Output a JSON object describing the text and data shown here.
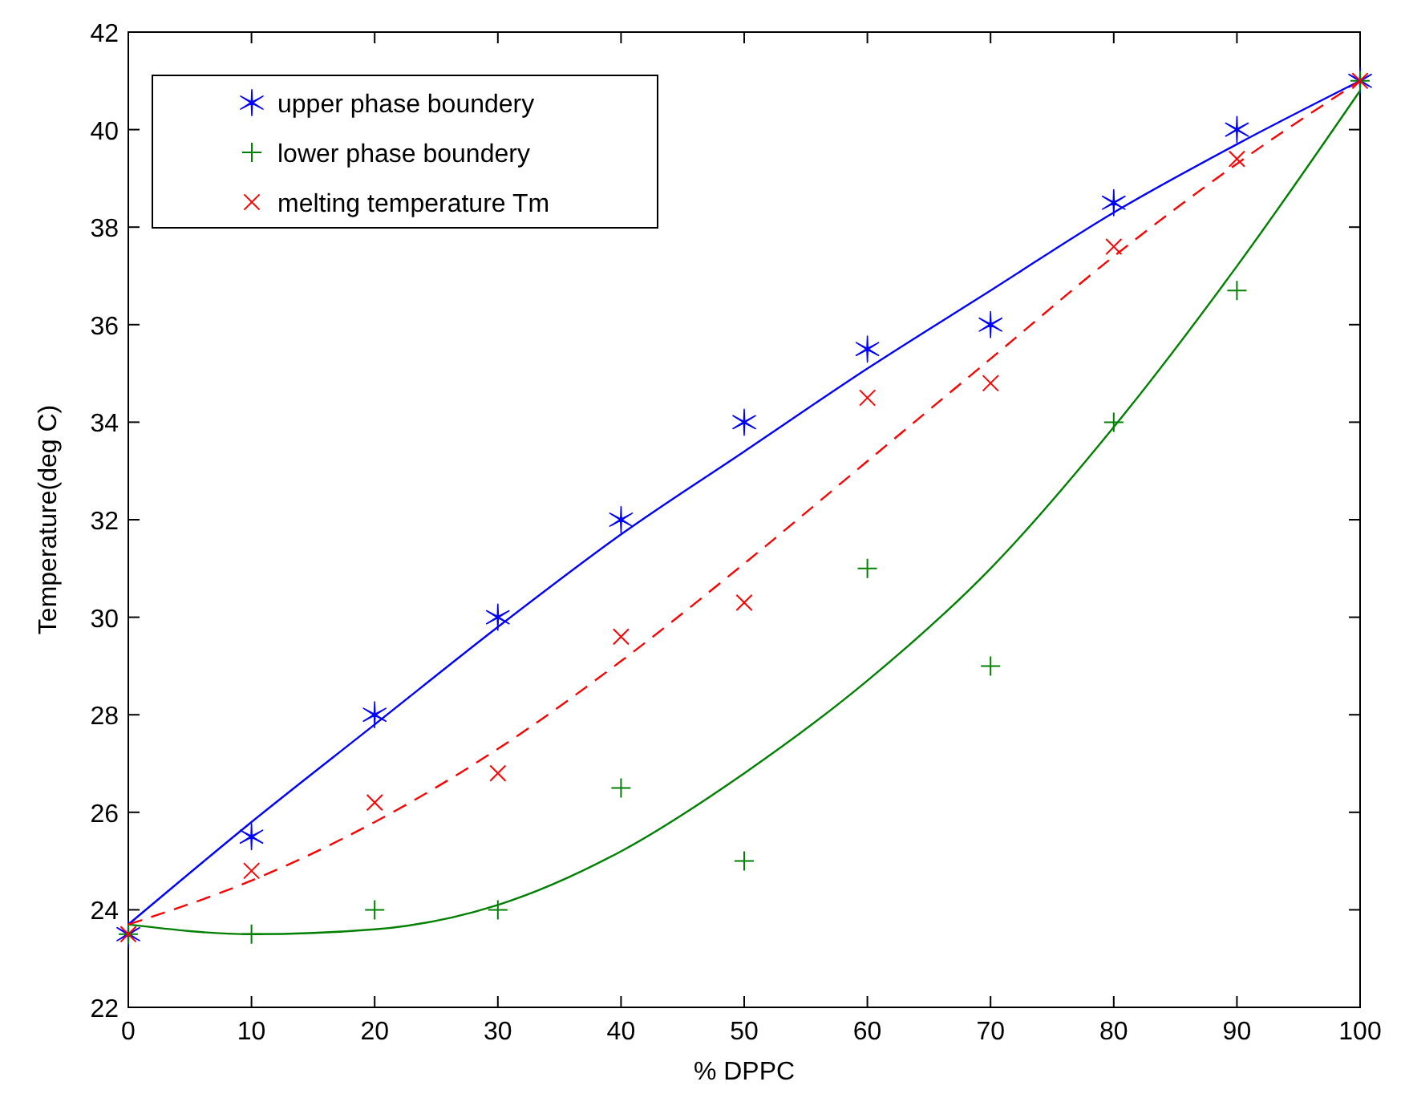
{
  "chart_data": {
    "type": "scatter",
    "xlabel": "% DPPC",
    "ylabel": "Temperature(deg C)",
    "x": [
      0,
      10,
      20,
      30,
      40,
      50,
      60,
      70,
      80,
      90,
      100
    ],
    "xlim": [
      0,
      100
    ],
    "xticks": [
      0,
      10,
      20,
      30,
      40,
      50,
      60,
      70,
      80,
      90,
      100
    ],
    "ylim": [
      22,
      42
    ],
    "yticks": [
      22,
      24,
      26,
      28,
      30,
      32,
      34,
      36,
      38,
      40,
      42
    ],
    "grid": false,
    "legend": "top left",
    "series": [
      {
        "name": "upper phase boundery",
        "color": "#0000ff",
        "values": [
          23.5,
          25.5,
          28,
          30,
          32,
          34,
          35.5,
          36,
          38.5,
          40,
          41
        ]
      },
      {
        "name": "lower phase boundery",
        "marker": "plus",
        "color": "#008000",
        "values": [
          23.5,
          23.5,
          24,
          24,
          26.5,
          25,
          31,
          29,
          34,
          36.7,
          41
        ]
      },
      {
        "name": "melting temperature Tm",
        "marker": "cross",
        "color": "#ff0000",
        "values": [
          23.5,
          24.8,
          26.2,
          26.8,
          29.6,
          30.3,
          34.5,
          34.8,
          37.6,
          39.4,
          41
        ]
      },
      {
        "type": "line",
        "marker": "none",
        "line_style": "solid",
        "color": "#0000ff",
        "values": [
          23.7,
          25.8,
          27.8,
          29.8,
          31.7,
          33.4,
          35.1,
          36.7,
          38.3,
          39.7,
          41
        ]
      },
      {
        "type": "line",
        "marker": "none",
        "line_style": "solid",
        "color": "#008000",
        "values": [
          23.7,
          23.5,
          23.6,
          24.1,
          25.2,
          26.8,
          28.7,
          31.0,
          33.9,
          37.2,
          40.8
        ]
      },
      {
        "type": "line",
        "marker": "none",
        "line_style": "dashed",
        "color": "#ff0000",
        "values": [
          23.7,
          24.6,
          25.8,
          27.3,
          29.1,
          31.1,
          33.2,
          35.3,
          37.4,
          39.3,
          41
        ]
      }
    ]
  }
}
